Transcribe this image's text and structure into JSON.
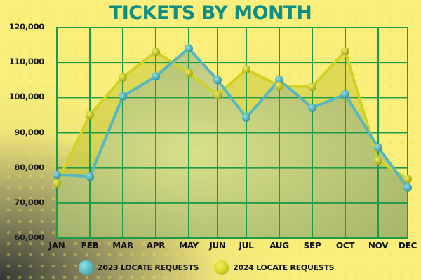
{
  "title": "TICKETS BY MONTH",
  "colors": {
    "title": "#0f8f84",
    "grid": "#1f9a4a",
    "series_2023": "#55b8c0",
    "series_2024": "#cfd225"
  },
  "legend": [
    {
      "label": "2023 LOCATE REQUESTS",
      "color": "#55b8c0"
    },
    {
      "label": "2024 LOCATE REQUESTS",
      "color": "#cfd225"
    }
  ],
  "y_ticks": [
    "120,000",
    "110,000",
    "100,000",
    "90,000",
    "80,000",
    "70,000",
    "60,000"
  ],
  "chart_data": {
    "type": "area",
    "title": "TICKETS BY MONTH",
    "xlabel": "",
    "ylabel": "",
    "categories": [
      "JAN",
      "FEB",
      "MAR",
      "APR",
      "MAY",
      "JUN",
      "JUL",
      "AUG",
      "SEP",
      "OCT",
      "NOV",
      "DEC"
    ],
    "series": [
      {
        "name": "2023 LOCATE REQUESTS",
        "values": [
          78000,
          77500,
          100300,
          106000,
          114000,
          105000,
          94300,
          105000,
          97100,
          100900,
          85800,
          74400
        ]
      },
      {
        "name": "2024 LOCATE REQUESTS",
        "values": [
          75600,
          95000,
          105700,
          113000,
          107000,
          100700,
          108000,
          103300,
          103000,
          113200,
          82100,
          76800
        ]
      }
    ],
    "ylim": [
      60000,
      120000
    ],
    "y_tick_step": 10000,
    "grid": true,
    "legend_position": "bottom"
  }
}
